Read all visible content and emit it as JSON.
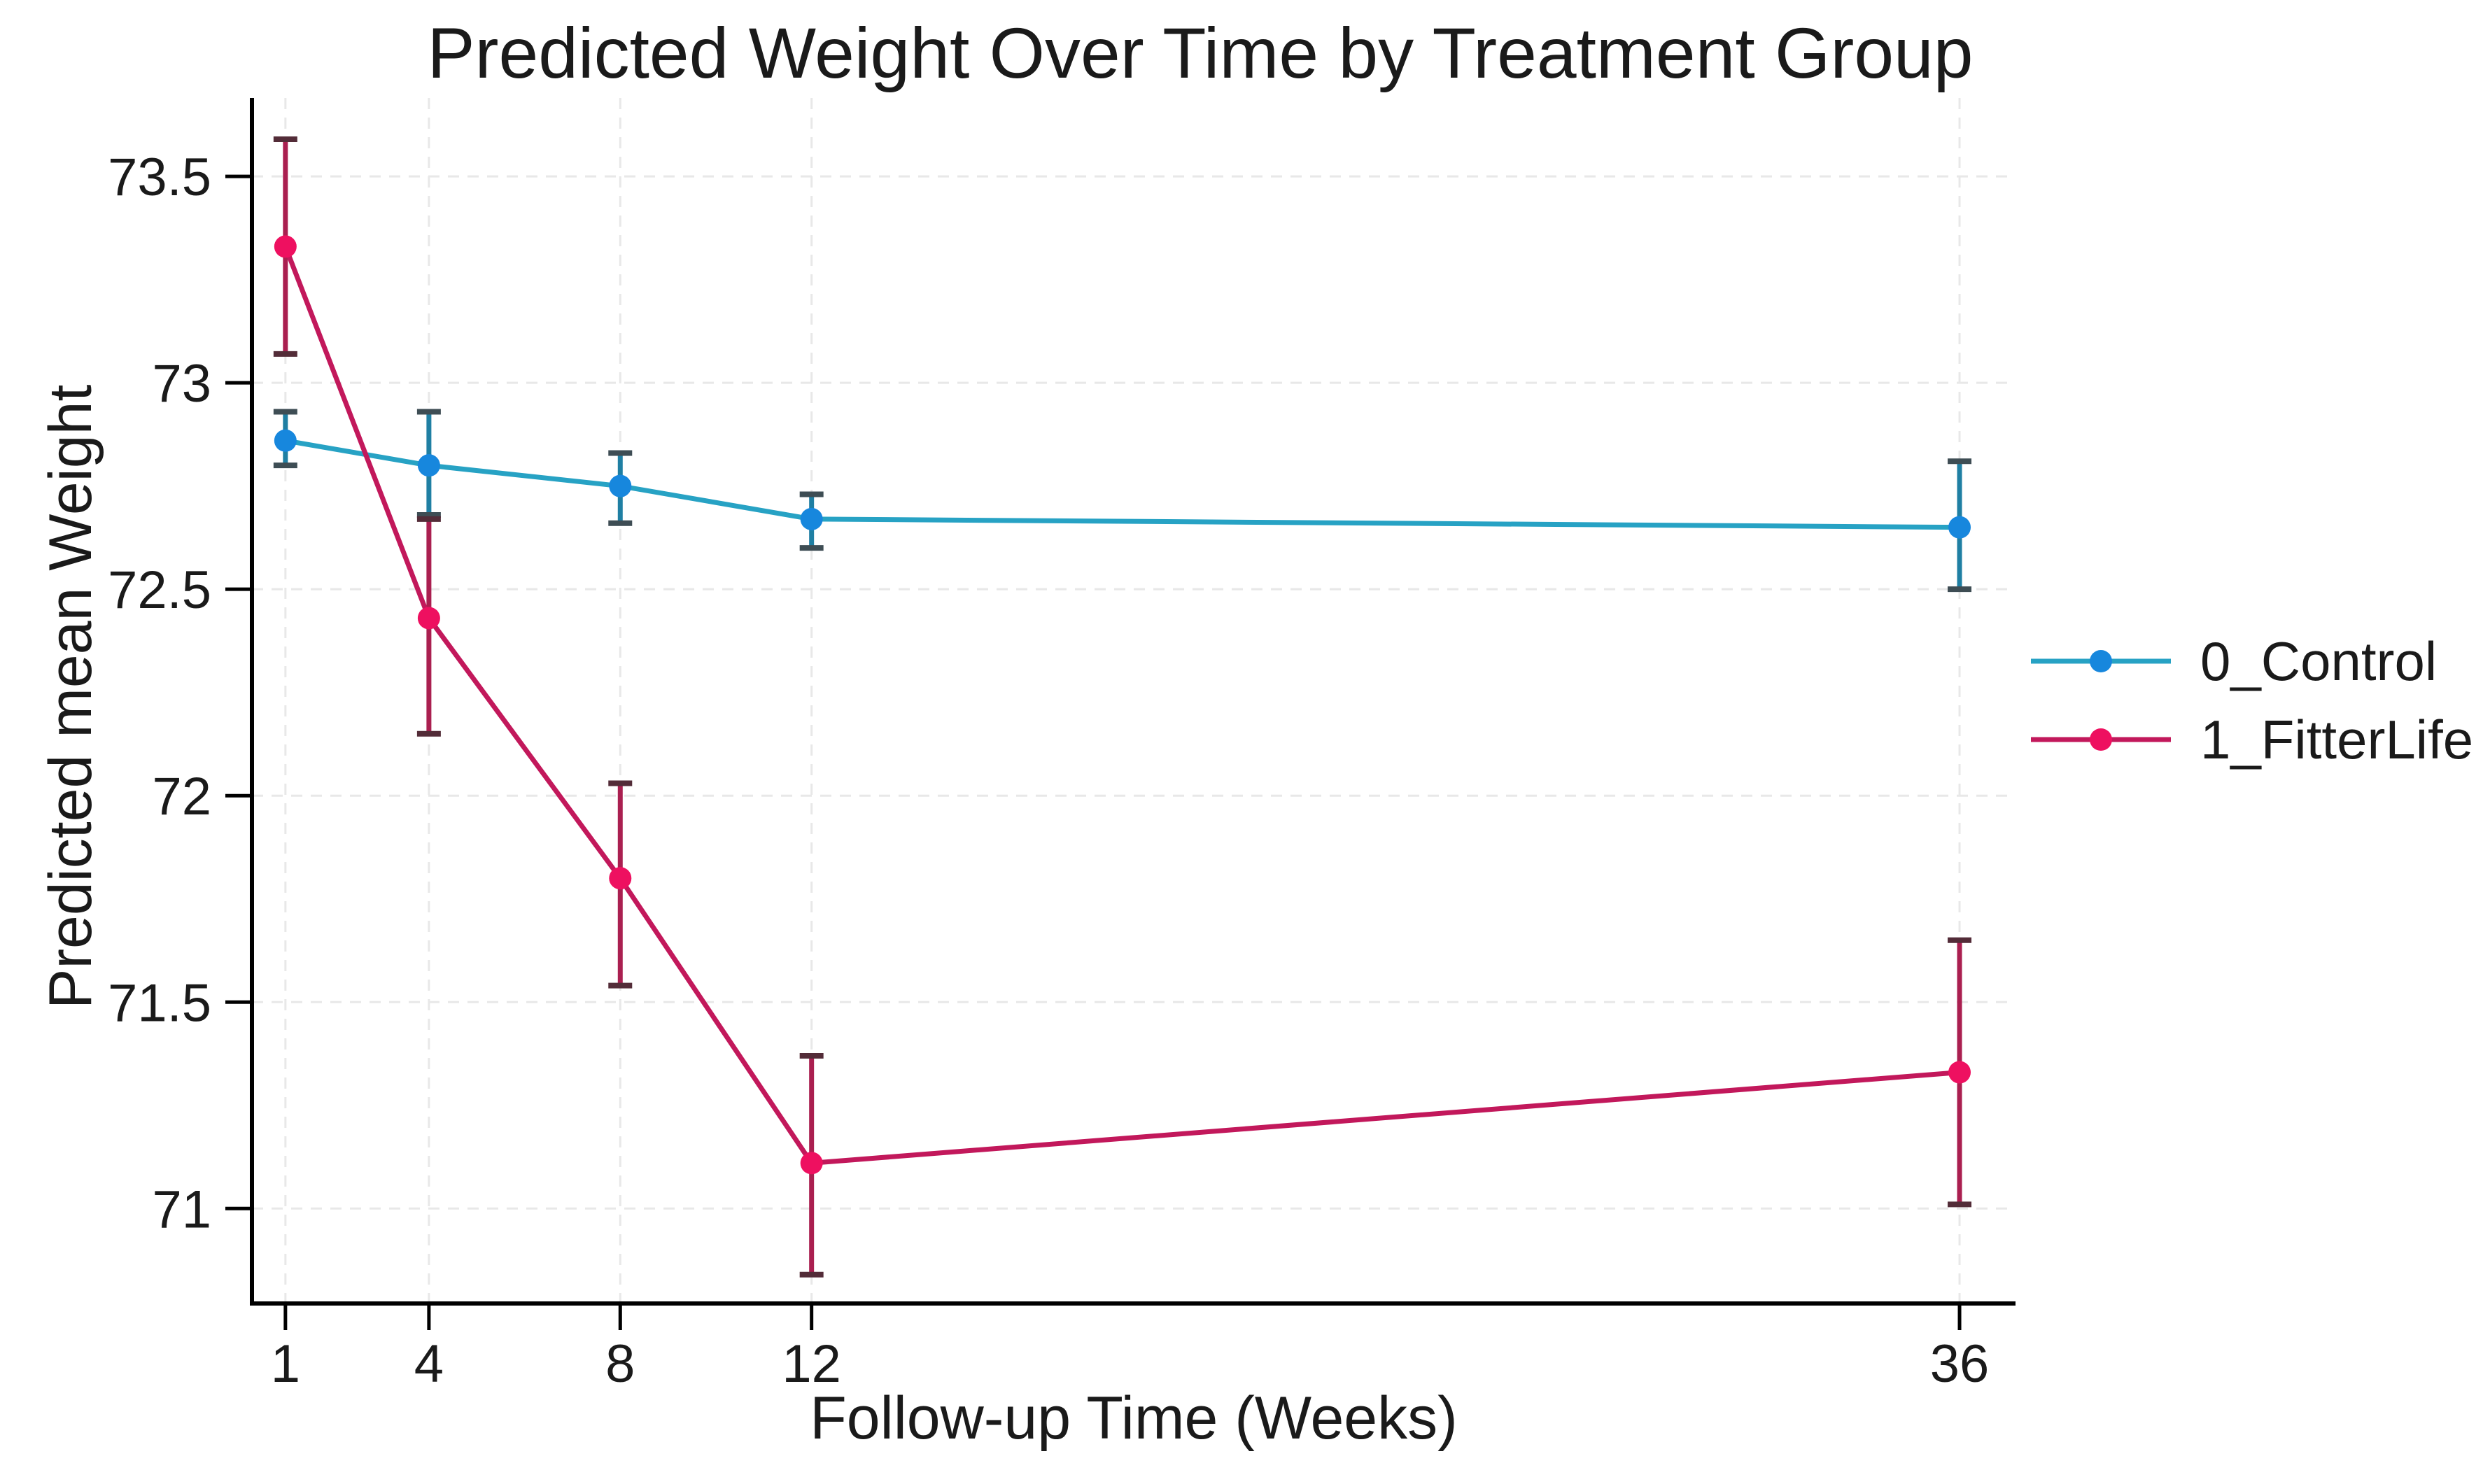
{
  "chart_data": {
    "type": "line",
    "title": "Predicted Weight Over Time by Treatment Group",
    "xlabel": "Follow-up Time (Weeks)",
    "ylabel": "Predicted mean Weight",
    "xticks": [
      1,
      4,
      8,
      12,
      36
    ],
    "yticks": [
      71,
      71.5,
      72,
      72.5,
      73,
      73.5
    ],
    "xlim": [
      0.3,
      37.17
    ],
    "ylim": [
      70.77,
      73.69
    ],
    "grid": "dashed light-gray horizontal and vertical gridlines at every tick",
    "legend_position": "right of plot, no border",
    "error_bars": "95% confidence intervals with caps",
    "background_color": "#ffffff",
    "axis_color": "#000000",
    "grid_color": "#e8e8e8",
    "series": [
      {
        "name": "0_Control",
        "line_color": "#27a2c4",
        "marker_color": "#1787dd",
        "error_color": "#1f7fa3",
        "cap_color": "#3e4d54",
        "x": [
          1,
          4,
          8,
          12,
          36
        ],
        "y": [
          72.86,
          72.8,
          72.75,
          72.67,
          72.65
        ],
        "ci_low": [
          72.8,
          72.68,
          72.66,
          72.6,
          72.5
        ],
        "ci_high": [
          72.93,
          72.93,
          72.83,
          72.73,
          72.81
        ]
      },
      {
        "name": "1_FitterLife",
        "line_color": "#c2185b",
        "marker_color": "#ee1060",
        "error_color": "#aa1f50",
        "cap_color": "#532c38",
        "x": [
          1,
          4,
          8,
          12,
          36
        ],
        "y": [
          73.33,
          72.43,
          71.8,
          71.11,
          71.33
        ],
        "ci_low": [
          73.07,
          72.15,
          71.54,
          70.84,
          71.01
        ],
        "ci_high": [
          73.59,
          72.67,
          72.03,
          71.37,
          71.65
        ]
      }
    ]
  }
}
